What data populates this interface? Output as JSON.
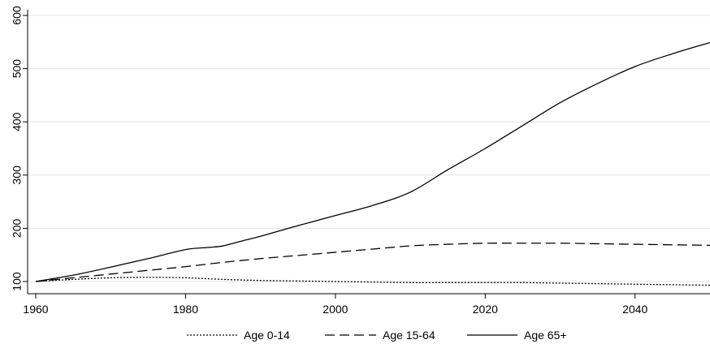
{
  "chart_data": {
    "type": "line",
    "title": "",
    "xlabel": "",
    "ylabel": "",
    "xlim": [
      1960,
      2050
    ],
    "ylim": [
      90,
      600
    ],
    "x_ticks": [
      1960,
      1980,
      2000,
      2020,
      2040
    ],
    "y_ticks": [
      100,
      200,
      300,
      400,
      500,
      600
    ],
    "grid": "horizontal",
    "legend_position": "bottom",
    "series": [
      {
        "name": "Age 0-14",
        "dash": "dotted",
        "x": [
          1960,
          1965,
          1970,
          1975,
          1980,
          1985,
          1990,
          1995,
          2000,
          2005,
          2010,
          2015,
          2020,
          2025,
          2030,
          2035,
          2040,
          2045,
          2050
        ],
        "values": [
          100,
          104,
          107,
          108,
          107,
          104,
          102,
          101,
          100,
          99,
          98,
          98,
          98,
          98,
          97,
          96,
          95,
          94,
          93
        ]
      },
      {
        "name": "Age 15-64",
        "dash": "long-dash",
        "x": [
          1960,
          1965,
          1970,
          1975,
          1980,
          1985,
          1990,
          1995,
          2000,
          2005,
          2010,
          2015,
          2020,
          2025,
          2030,
          2035,
          2040,
          2045,
          2050
        ],
        "values": [
          100,
          107,
          114,
          121,
          128,
          136,
          143,
          149,
          155,
          161,
          167,
          170,
          172,
          172,
          172,
          171,
          170,
          169,
          168
        ]
      },
      {
        "name": "Age 65+",
        "dash": "solid",
        "x": [
          1960,
          1965,
          1970,
          1975,
          1980,
          1983,
          1985,
          1988,
          1990,
          1995,
          2000,
          2005,
          2010,
          2015,
          2020,
          2025,
          2030,
          2035,
          2040,
          2045,
          2050
        ],
        "values": [
          100,
          112,
          127,
          143,
          160,
          164,
          167,
          178,
          185,
          205,
          224,
          243,
          268,
          310,
          350,
          393,
          436,
          472,
          504,
          528,
          549
        ]
      }
    ]
  }
}
